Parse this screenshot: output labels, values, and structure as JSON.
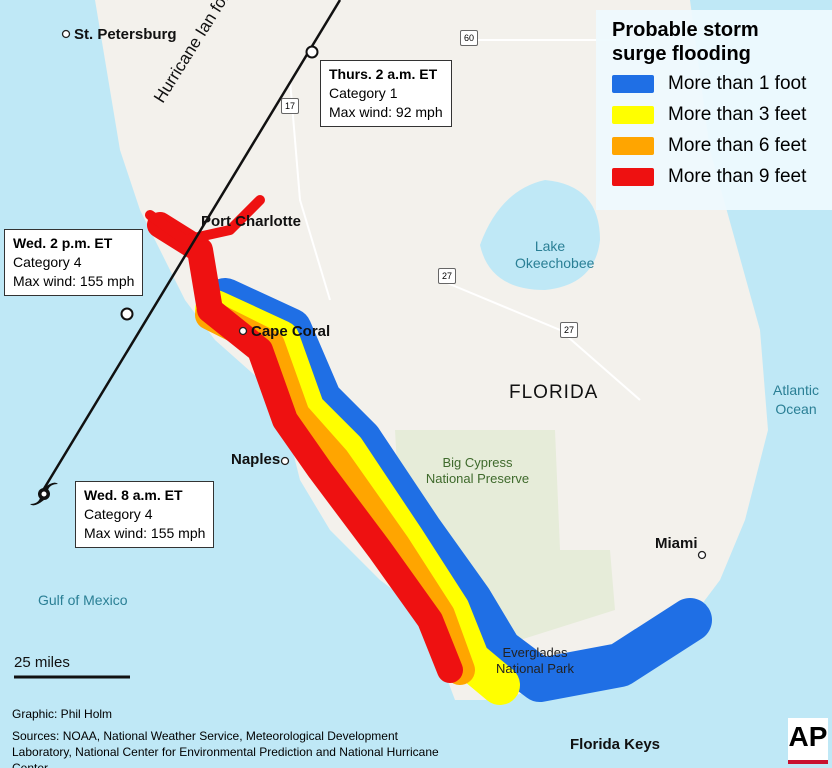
{
  "legend": {
    "title": "Probable storm surge flooding",
    "items": [
      {
        "label": "More than 1 foot",
        "color": "#1f6fe5"
      },
      {
        "label": "More than 3 feet",
        "color": "#ffff00"
      },
      {
        "label": "More than 6 feet",
        "color": "#ffa500"
      },
      {
        "label": "More than 9 feet",
        "color": "#ee1111"
      }
    ]
  },
  "cities": {
    "st_petersburg": "St. Petersburg",
    "port_charlotte": "Port Charlotte",
    "cape_coral": "Cape Coral",
    "naples": "Naples",
    "miami": "Miami",
    "florida_keys": "Florida Keys"
  },
  "regions": {
    "florida": "FLORIDA",
    "lake": "Lake Okeechobee",
    "atlantic": "Atlantic Ocean",
    "gulf": "Gulf of Mexico",
    "big_cypress": "Big Cypress National Preserve",
    "everglades": "Everglades National Park"
  },
  "track": {
    "label": "Hurricane Ian forecast path",
    "points": [
      {
        "time": "Thurs. 2 a.m. ET",
        "category": "Category 1",
        "wind": "Max wind: 92 mph"
      },
      {
        "time": "Wed. 2 p.m. ET",
        "category": "Category 4",
        "wind": "Max wind: 155 mph"
      },
      {
        "time": "Wed. 8 a.m. ET",
        "category": "Category 4",
        "wind": "Max wind: 155 mph"
      }
    ]
  },
  "highways": [
    "60",
    "17",
    "27",
    "27"
  ],
  "scale": "25 miles",
  "credits": {
    "graphic": "Graphic: Phil Holm",
    "sources": "Sources: NOAA, National Weather Service, Meteorological Development Laboratory, National Center for Environmental Prediction and National Hurricane Center"
  },
  "logo": "AP"
}
